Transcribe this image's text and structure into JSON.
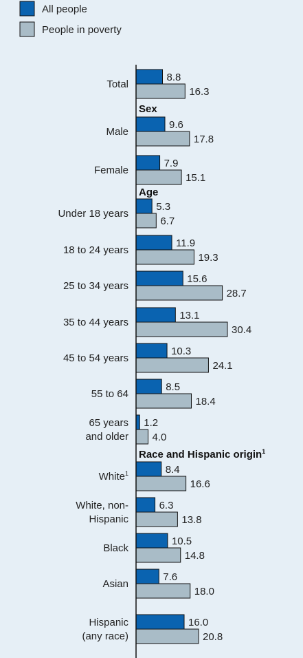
{
  "chart_data": {
    "type": "bar",
    "orientation": "horizontal",
    "legend": {
      "placement": "top-left",
      "items": [
        {
          "name": "All people",
          "color": "#0a63b0"
        },
        {
          "name": "People in poverty",
          "color": "#a9bcc7"
        }
      ]
    },
    "series_names": [
      "All people",
      "People in poverty"
    ],
    "colors": {
      "all_people": "#0a63b0",
      "poverty": "#a9bcc7",
      "axis": "#111111",
      "background": "#e6eff6"
    },
    "xlim": [
      0,
      35
    ],
    "rows": [
      {
        "kind": "category",
        "label_lines": [
          "Total"
        ],
        "values": [
          8.8,
          16.3
        ],
        "value_labels": [
          "8.8",
          "16.3"
        ]
      },
      {
        "kind": "group",
        "label": "Sex"
      },
      {
        "kind": "category",
        "label_lines": [
          "Male"
        ],
        "values": [
          9.6,
          17.8
        ],
        "value_labels": [
          "9.6",
          "17.8"
        ]
      },
      {
        "kind": "category",
        "label_lines": [
          "Female"
        ],
        "values": [
          7.9,
          15.1
        ],
        "value_labels": [
          "7.9",
          "15.1"
        ]
      },
      {
        "kind": "group",
        "label": "Age"
      },
      {
        "kind": "category",
        "label_lines": [
          "Under 18 years"
        ],
        "values": [
          5.3,
          6.7
        ],
        "value_labels": [
          "5.3",
          "6.7"
        ]
      },
      {
        "kind": "category",
        "label_lines": [
          "18 to 24 years"
        ],
        "values": [
          11.9,
          19.3
        ],
        "value_labels": [
          "11.9",
          "19.3"
        ]
      },
      {
        "kind": "category",
        "label_lines": [
          "25 to 34 years"
        ],
        "values": [
          15.6,
          28.7
        ],
        "value_labels": [
          "15.6",
          "28.7"
        ]
      },
      {
        "kind": "category",
        "label_lines": [
          "35 to 44 years"
        ],
        "values": [
          13.1,
          30.4
        ],
        "value_labels": [
          "13.1",
          "30.4"
        ]
      },
      {
        "kind": "category",
        "label_lines": [
          "45 to 54 years"
        ],
        "values": [
          10.3,
          24.1
        ],
        "value_labels": [
          "10.3",
          "24.1"
        ]
      },
      {
        "kind": "category",
        "label_lines": [
          "55 to 64"
        ],
        "values": [
          8.5,
          18.4
        ],
        "value_labels": [
          "8.5",
          "18.4"
        ]
      },
      {
        "kind": "category",
        "label_lines": [
          "65 years",
          "and older"
        ],
        "values": [
          1.2,
          4.0
        ],
        "value_labels": [
          "1.2",
          "4.0"
        ]
      },
      {
        "kind": "group",
        "label": "Race and Hispanic origin",
        "sup": "1"
      },
      {
        "kind": "category",
        "label_lines": [
          "White"
        ],
        "sup": "1",
        "values": [
          8.4,
          16.6
        ],
        "value_labels": [
          "8.4",
          "16.6"
        ]
      },
      {
        "kind": "category",
        "label_lines": [
          "White, non-",
          "Hispanic"
        ],
        "values": [
          6.3,
          13.8
        ],
        "value_labels": [
          "6.3",
          "13.8"
        ]
      },
      {
        "kind": "category",
        "label_lines": [
          "Black"
        ],
        "values": [
          10.5,
          14.8
        ],
        "value_labels": [
          "10.5",
          "14.8"
        ]
      },
      {
        "kind": "category",
        "label_lines": [
          "Asian"
        ],
        "values": [
          7.6,
          18.0
        ],
        "value_labels": [
          "7.6",
          "18.0"
        ]
      },
      {
        "kind": "category",
        "label_lines": [
          "Hispanic",
          "(any race)"
        ],
        "values": [
          16.0,
          20.8
        ],
        "value_labels": [
          "16.0",
          "20.8"
        ]
      }
    ]
  }
}
